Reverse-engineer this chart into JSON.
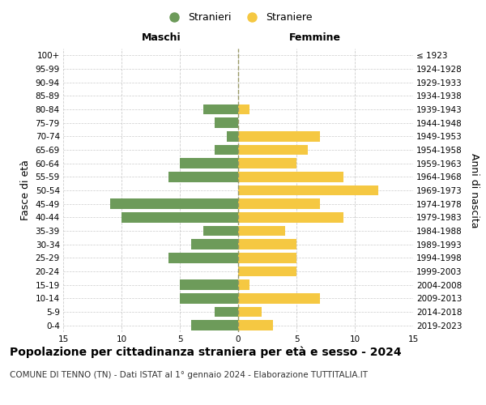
{
  "age_groups": [
    "0-4",
    "5-9",
    "10-14",
    "15-19",
    "20-24",
    "25-29",
    "30-34",
    "35-39",
    "40-44",
    "45-49",
    "50-54",
    "55-59",
    "60-64",
    "65-69",
    "70-74",
    "75-79",
    "80-84",
    "85-89",
    "90-94",
    "95-99",
    "100+"
  ],
  "birth_years": [
    "2019-2023",
    "2014-2018",
    "2009-2013",
    "2004-2008",
    "1999-2003",
    "1994-1998",
    "1989-1993",
    "1984-1988",
    "1979-1983",
    "1974-1978",
    "1969-1973",
    "1964-1968",
    "1959-1963",
    "1954-1958",
    "1949-1953",
    "1944-1948",
    "1939-1943",
    "1934-1938",
    "1929-1933",
    "1924-1928",
    "≤ 1923"
  ],
  "maschi": [
    4,
    2,
    5,
    5,
    0,
    6,
    4,
    3,
    10,
    11,
    0,
    6,
    5,
    2,
    1,
    2,
    3,
    0,
    0,
    0,
    0
  ],
  "femmine": [
    3,
    2,
    7,
    1,
    5,
    5,
    5,
    4,
    9,
    7,
    12,
    9,
    5,
    6,
    7,
    0,
    1,
    0,
    0,
    0,
    0
  ],
  "color_maschi": "#6d9b5a",
  "color_femmine": "#f5c842",
  "title": "Popolazione per cittadinanza straniera per età e sesso - 2024",
  "subtitle": "COMUNE DI TENNO (TN) - Dati ISTAT al 1° gennaio 2024 - Elaborazione TUTTITALIA.IT",
  "xlabel_left": "Maschi",
  "xlabel_right": "Femmine",
  "ylabel_left": "Fasce di età",
  "ylabel_right": "Anni di nascita",
  "legend_maschi": "Stranieri",
  "legend_femmine": "Straniere",
  "xlim": 15,
  "bar_height": 0.75,
  "background_color": "#ffffff",
  "grid_color": "#cccccc",
  "center_line_color": "#999966",
  "title_fontsize": 10,
  "subtitle_fontsize": 7.5,
  "tick_fontsize": 7.5,
  "label_fontsize": 9
}
